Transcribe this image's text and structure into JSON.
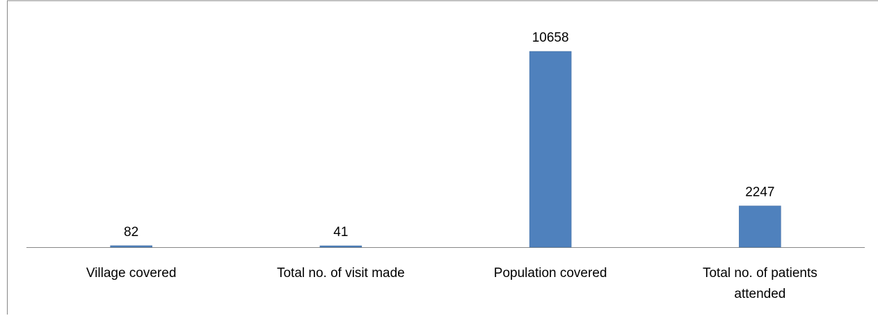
{
  "chart_data": {
    "type": "bar",
    "categories": [
      [
        "Village covered"
      ],
      [
        "Total no. of visit made"
      ],
      [
        "Population covered"
      ],
      [
        "Total no. of patients",
        "attended"
      ]
    ],
    "values": [
      82,
      41,
      10658,
      2247
    ],
    "data_labels": [
      "82",
      "41",
      "10658",
      "2247"
    ],
    "title": "",
    "xlabel": "",
    "ylabel": "",
    "ylim": [
      0,
      11000
    ],
    "grid": false,
    "legend": "none",
    "y_axis_visible": false,
    "colors": {
      "bar": "#4F81BD",
      "bar_edge": "#3F6A9E",
      "axis": "#868686",
      "border": "#868686"
    }
  }
}
